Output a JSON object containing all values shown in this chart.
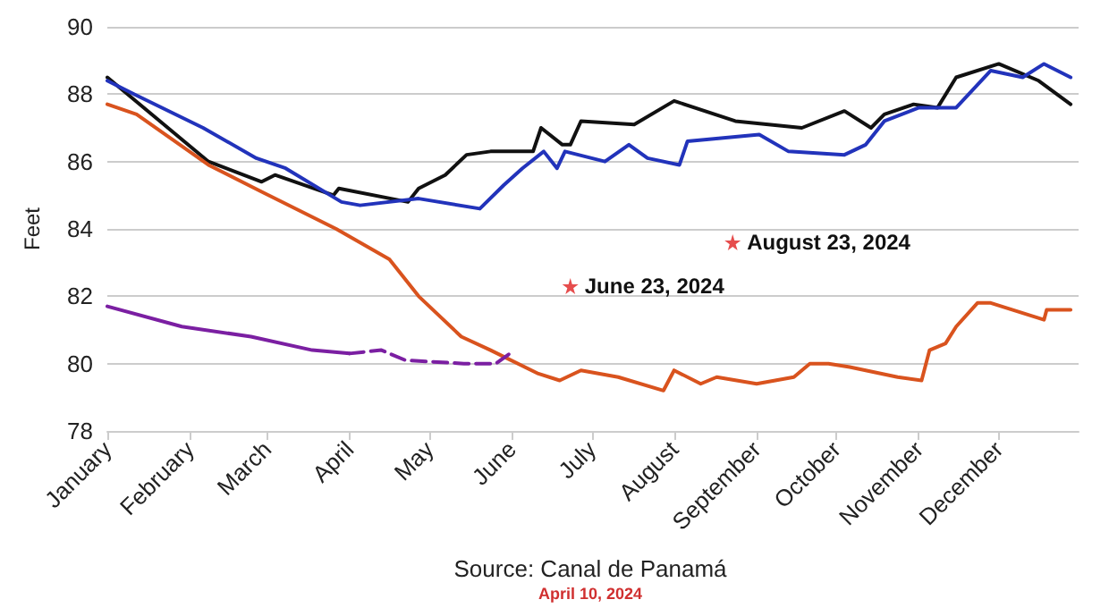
{
  "chart_data": {
    "type": "line",
    "ylabel": "Feet",
    "xlim": [
      "--01-01",
      "--12-31"
    ],
    "xticks": [
      {
        "value": "--01-01",
        "label": "January"
      },
      {
        "value": "--02-01",
        "label": "February"
      },
      {
        "value": "--03-01",
        "label": "March"
      },
      {
        "value": "--04-01",
        "label": "April"
      },
      {
        "value": "--05-01",
        "label": "May"
      },
      {
        "value": "--06-01",
        "label": "June"
      },
      {
        "value": "--07-01",
        "label": "July"
      },
      {
        "value": "--08-01",
        "label": "August"
      },
      {
        "value": "--09-01",
        "label": "September"
      },
      {
        "value": "--10-01",
        "label": "October"
      },
      {
        "value": "--11-01",
        "label": "November"
      },
      {
        "value": "--12-01",
        "label": "December"
      }
    ],
    "ylim": [
      78,
      90
    ],
    "yticks": [
      78,
      80,
      82,
      84,
      86,
      88,
      90
    ],
    "grid": "y",
    "marker": "none",
    "line_style": "solid",
    "series": [
      {
        "color": "#111111",
        "x": [
          "--01-01",
          "--02-08",
          "--02-28",
          "--03-04",
          "--03-26",
          "--03-28",
          "--04-23",
          "--04-27",
          "--05-07",
          "--05-15",
          "--05-24",
          "--06-09",
          "--06-12",
          "--06-20",
          "--06-23",
          "--06-27",
          "--07-17",
          "--08-01",
          "--08-24",
          "--09-18",
          "--10-04",
          "--10-14",
          "--10-19",
          "--10-30",
          "--11-08",
          "--11-15",
          "--12-01",
          "--12-16",
          "--12-28"
        ],
        "values": [
          88.5,
          86.0,
          85.4,
          85.6,
          85.0,
          85.2,
          84.8,
          85.2,
          85.6,
          86.2,
          86.3,
          86.3,
          87.0,
          86.5,
          86.5,
          87.2,
          87.1,
          87.8,
          87.2,
          87.0,
          87.5,
          87.0,
          87.4,
          87.7,
          87.6,
          88.5,
          88.9,
          88.4,
          87.7
        ]
      },
      {
        "color": "#2233bb",
        "x": [
          "--01-01",
          "--01-11",
          "--02-06",
          "--02-26",
          "--03-08",
          "--03-29",
          "--04-05",
          "--04-27",
          "--05-20",
          "--05-29",
          "--06-05",
          "--06-13",
          "--06-18",
          "--06-21",
          "--07-06",
          "--07-15",
          "--07-22",
          "--08-03",
          "--08-06",
          "--09-02",
          "--09-13",
          "--10-04",
          "--10-12",
          "--10-19",
          "--11-01",
          "--11-15",
          "--11-28",
          "--12-10",
          "--12-18",
          "--12-28"
        ],
        "values": [
          88.4,
          88.0,
          87.0,
          86.1,
          85.8,
          84.8,
          84.7,
          84.9,
          84.6,
          85.3,
          85.8,
          86.3,
          85.8,
          86.3,
          86.0,
          86.5,
          86.1,
          85.9,
          86.6,
          86.8,
          86.3,
          86.2,
          86.5,
          87.2,
          87.6,
          87.6,
          88.7,
          88.5,
          88.9,
          88.5
        ]
      },
      {
        "color": "#d9531e",
        "x": [
          "--01-01",
          "--01-12",
          "--02-08",
          "--02-28",
          "--03-27",
          "--04-16",
          "--04-27",
          "--05-13",
          "--05-24",
          "--06-11",
          "--06-19",
          "--06-27",
          "--07-11",
          "--07-28",
          "--08-01",
          "--08-11",
          "--08-17",
          "--09-01",
          "--09-15",
          "--09-21",
          "--09-28",
          "--10-06",
          "--10-24",
          "--11-02",
          "--11-05",
          "--11-11",
          "--11-15",
          "--11-23",
          "--11-28",
          "--12-14",
          "--12-18",
          "--12-19",
          "--12-28"
        ],
        "values": [
          87.7,
          87.4,
          85.9,
          85.1,
          84.0,
          83.1,
          82.0,
          80.8,
          80.4,
          79.7,
          79.5,
          79.8,
          79.6,
          79.2,
          79.8,
          79.4,
          79.6,
          79.4,
          79.6,
          80.0,
          80.0,
          79.9,
          79.6,
          79.5,
          80.4,
          80.6,
          81.1,
          81.8,
          81.8,
          81.4,
          81.3,
          81.6,
          81.6
        ]
      },
      {
        "color": "#7b1fa2",
        "x": [
          "--01-01",
          "--01-29",
          "--02-24",
          "--03-18",
          "--04-01"
        ],
        "values": [
          81.7,
          81.1,
          80.8,
          80.4,
          80.3
        ]
      },
      {
        "color": "#7b1fa2",
        "line_style": "dashed",
        "x": [
          "--04-01",
          "--04-13",
          "--04-22",
          "--05-14",
          "--05-26",
          "--06-02"
        ],
        "values": [
          80.3,
          80.4,
          80.1,
          80.0,
          80.0,
          80.4
        ]
      },
      {
        "type": "scatter",
        "marker": "star",
        "color": "#e02020",
        "x": [
          "--06-23",
          "--08-23"
        ],
        "values": [
          82.3,
          83.6
        ]
      }
    ],
    "annotations": [
      {
        "text": "June 23, 2024",
        "x": "--06-23",
        "y": 82.3
      },
      {
        "text": "August 23, 2024",
        "x": "--08-23",
        "y": 83.6
      },
      "Source: Canal de Panamá",
      "April 10, 2024"
    ]
  }
}
